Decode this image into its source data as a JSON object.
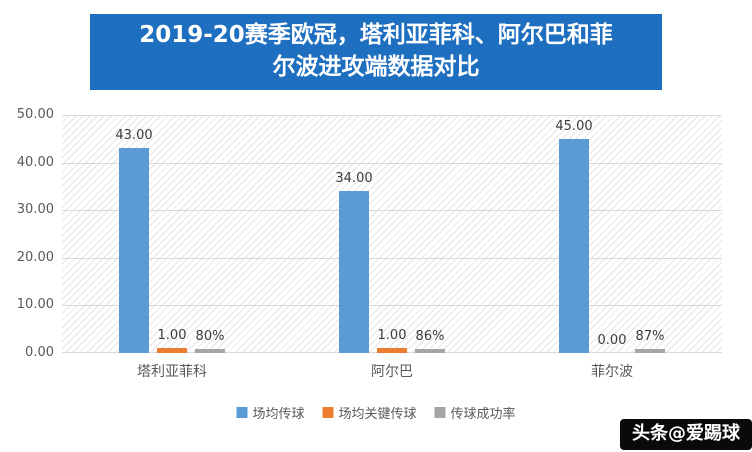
{
  "title": {
    "line1": "2019-20赛季欧冠，塔利亚菲科、阿尔巴和菲",
    "line2": "尔波进攻端数据对比"
  },
  "watermark": "头条@爱踢球",
  "colors": {
    "title_bg": "#1E6FC0",
    "series_blue": "#5B9BD5",
    "series_orange": "#ED7D31",
    "series_gray": "#A5A5A5",
    "gridline": "#D9D9D9",
    "axis_text": "#595959"
  },
  "chart_data": {
    "type": "bar",
    "title": "2019-20赛季欧冠，塔利亚菲科、阿尔巴和菲尔波进攻端数据对比",
    "categories": [
      "塔利亚菲科",
      "阿尔巴",
      "菲尔波"
    ],
    "series": [
      {
        "name": "场均传球",
        "color": "#5B9BD5",
        "values": [
          43,
          34,
          45
        ],
        "labels": [
          "43.00",
          "34.00",
          "45.00"
        ]
      },
      {
        "name": "场均关键传球",
        "color": "#ED7D31",
        "values": [
          1,
          1,
          0
        ],
        "labels": [
          "1.00",
          "1.00",
          "0.00"
        ]
      },
      {
        "name": "传球成功率",
        "color": "#A5A5A5",
        "values": [
          0.8,
          0.86,
          0.87
        ],
        "labels": [
          "80%",
          "86%",
          "87%"
        ]
      }
    ],
    "ylim": [
      0,
      50
    ],
    "yticks": [
      0,
      10,
      20,
      30,
      40,
      50
    ],
    "ytick_labels": [
      "0.00",
      "10.00",
      "20.00",
      "30.00",
      "40.00",
      "50.00"
    ],
    "legend_position": "bottom",
    "grid": true
  }
}
